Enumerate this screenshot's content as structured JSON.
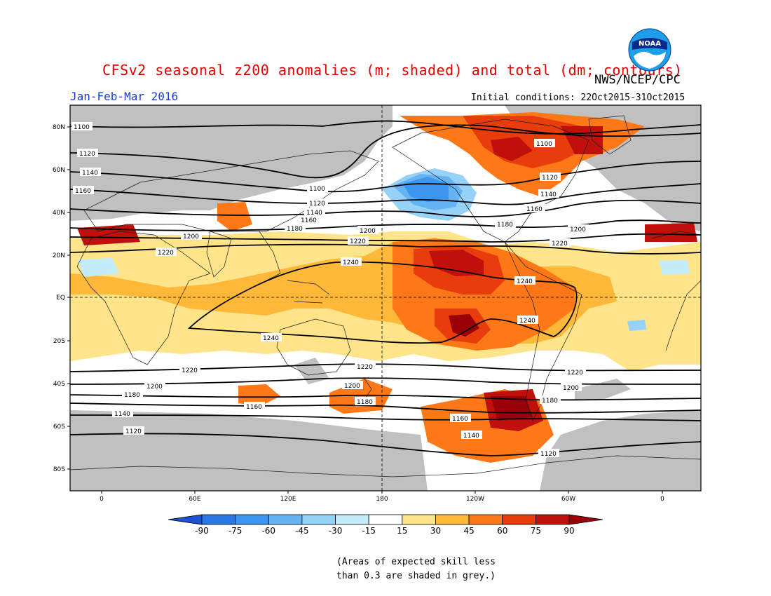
{
  "title": "CFSv2 seasonal z200 anomalies (m; shaded) and total (dm; contours)",
  "season": "Jan-Feb-Mar 2016",
  "initial_conditions": "Initial conditions: 22Oct2015-31Oct2015",
  "organization": "NWS/NCEP/CPC",
  "logo_text": "NOAA",
  "lat_ticks": [
    "80N",
    "60N",
    "40N",
    "20N",
    "EQ",
    "20S",
    "40S",
    "60S",
    "80S"
  ],
  "lon_ticks": [
    "0",
    "60E",
    "120E",
    "180",
    "120W",
    "60W",
    "0"
  ],
  "contour_labels": [
    "1100",
    "1120",
    "1140",
    "1160",
    "1180",
    "1200",
    "1220",
    "1240"
  ],
  "colorbar": {
    "labels": [
      "-90",
      "-75",
      "-60",
      "-45",
      "-30",
      "-15",
      "15",
      "30",
      "45",
      "60",
      "75",
      "90"
    ],
    "colors": [
      "#1e50d2",
      "#2a78e6",
      "#3c96f0",
      "#64b4f4",
      "#96d2f8",
      "#c4ecf8",
      "#ffffff",
      "#ffe48a",
      "#ffb838",
      "#ff7818",
      "#e83c0c",
      "#c0100c",
      "#9a0008"
    ]
  },
  "skill_note": [
    "(Areas of expected skill less",
    "than 0.3 are shaded in grey.)"
  ]
}
